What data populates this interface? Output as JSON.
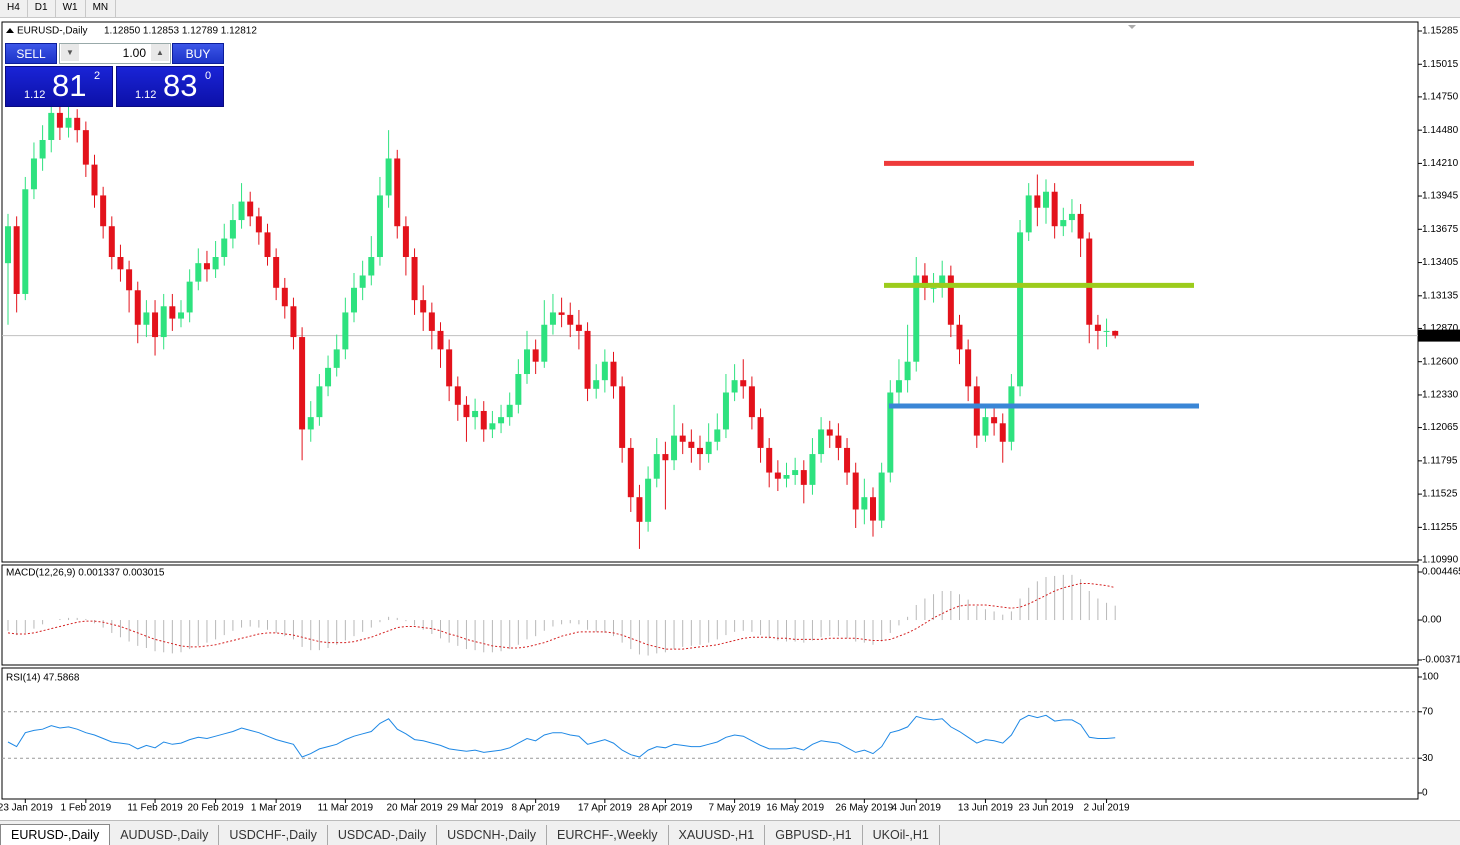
{
  "toolbar": {
    "timeframes": [
      "H4",
      "D1",
      "W1",
      "MN"
    ]
  },
  "trade_panel": {
    "sell": "SELL",
    "lot": "1.00",
    "buy": "BUY",
    "sell_price": {
      "big": "1.12",
      "pips": "81",
      "frac": "2"
    },
    "buy_price": {
      "big": "1.12",
      "pips": "83",
      "frac": "0"
    }
  },
  "chart_data": [
    {
      "type": "candlestick",
      "title": "EURUSD-,Daily",
      "ohlc_label": "1.12850 1.12853 1.12789 1.12812",
      "up_color": "#2ee27f",
      "down_color": "#e3121b",
      "categories": [
        null,
        null,
        "23 Jan 2019",
        null,
        null,
        null,
        null,
        null,
        null,
        "1 Feb 2019",
        null,
        null,
        null,
        null,
        null,
        null,
        null,
        "11 Feb 2019",
        null,
        null,
        null,
        null,
        null,
        null,
        "20 Feb 2019",
        null,
        null,
        null,
        null,
        null,
        null,
        "1 Mar 2019",
        null,
        null,
        null,
        null,
        null,
        null,
        null,
        "11 Mar 2019",
        null,
        null,
        null,
        null,
        null,
        null,
        null,
        "20 Mar 2019",
        null,
        null,
        null,
        null,
        null,
        null,
        "29 Mar 2019",
        null,
        null,
        null,
        null,
        null,
        null,
        "8 Apr 2019",
        null,
        null,
        null,
        null,
        null,
        null,
        null,
        "17 Apr 2019",
        null,
        null,
        null,
        null,
        null,
        null,
        "28 Apr 2019",
        null,
        null,
        null,
        null,
        null,
        null,
        null,
        "7 May 2019",
        null,
        null,
        null,
        null,
        null,
        null,
        "16 May 2019",
        null,
        null,
        null,
        null,
        null,
        null,
        null,
        "26 May 2019",
        null,
        null,
        null,
        null,
        null,
        "4 Jun 2019",
        null,
        null,
        null,
        null,
        null,
        null,
        null,
        "13 Jun 2019",
        null,
        null,
        null,
        null,
        null,
        null,
        "23 Jun 2019",
        null,
        null,
        null,
        null,
        null,
        null,
        "2 Jul 2019",
        null
      ],
      "open": [
        1.134,
        1.137,
        1.1315,
        1.14,
        1.1425,
        1.144,
        1.1462,
        1.145,
        1.1458,
        1.1448,
        1.142,
        1.1395,
        1.137,
        1.1345,
        1.1335,
        1.1318,
        1.129,
        1.13,
        1.128,
        1.1305,
        1.1295,
        1.13,
        1.1325,
        1.134,
        1.1335,
        1.1345,
        1.136,
        1.1375,
        1.139,
        1.1378,
        1.1365,
        1.1345,
        1.132,
        1.1305,
        1.128,
        1.1205,
        1.1215,
        1.124,
        1.1255,
        1.127,
        1.13,
        1.132,
        1.133,
        1.1345,
        1.1395,
        1.1425,
        1.137,
        1.1345,
        1.131,
        1.13,
        1.1285,
        1.127,
        1.124,
        1.1225,
        1.1215,
        1.122,
        1.1205,
        1.121,
        1.1215,
        1.1225,
        1.125,
        1.127,
        1.126,
        1.129,
        1.13,
        1.1298,
        1.129,
        1.1285,
        1.1238,
        1.1245,
        1.126,
        1.124,
        1.119,
        1.115,
        1.113,
        1.1165,
        1.1185,
        1.118,
        1.12,
        1.1195,
        1.119,
        1.1185,
        1.1195,
        1.1205,
        1.1235,
        1.1245,
        1.124,
        1.1215,
        1.119,
        1.117,
        1.1165,
        1.1168,
        1.1172,
        1.116,
        1.1185,
        1.1205,
        1.12,
        1.119,
        1.117,
        1.114,
        1.115,
        1.1131,
        1.117,
        1.1235,
        1.1245,
        1.126,
        1.133,
        1.132,
        1.132,
        1.133,
        1.129,
        1.127,
        1.124,
        1.12,
        1.1215,
        1.121,
        1.1195,
        1.124,
        1.1365,
        1.1395,
        1.1385,
        1.1398,
        1.137,
        1.1375,
        1.138,
        1.136,
        1.129,
        1.1285,
        1.1285
      ],
      "high": [
        1.138,
        1.1378,
        1.141,
        1.1438,
        1.1452,
        1.1478,
        1.147,
        1.1468,
        1.1465,
        1.1455,
        1.1428,
        1.1402,
        1.1378,
        1.1355,
        1.1342,
        1.1325,
        1.131,
        1.131,
        1.1315,
        1.1315,
        1.131,
        1.1335,
        1.1352,
        1.135,
        1.1358,
        1.1372,
        1.1388,
        1.1405,
        1.1398,
        1.1385,
        1.1372,
        1.1352,
        1.1328,
        1.1312,
        1.1288,
        1.1228,
        1.125,
        1.1265,
        1.1282,
        1.1312,
        1.1332,
        1.1342,
        1.1362,
        1.141,
        1.1448,
        1.1432,
        1.1378,
        1.1352,
        1.1322,
        1.1308,
        1.1292,
        1.1278,
        1.1248,
        1.1232,
        1.123,
        1.1228,
        1.122,
        1.1225,
        1.1235,
        1.1262,
        1.1285,
        1.1278,
        1.131,
        1.1315,
        1.1312,
        1.1308,
        1.1302,
        1.1292,
        1.1258,
        1.127,
        1.1268,
        1.1248,
        1.1198,
        1.116,
        1.1175,
        1.1198,
        1.1195,
        1.1225,
        1.121,
        1.1205,
        1.12,
        1.121,
        1.1218,
        1.125,
        1.1258,
        1.1262,
        1.1248,
        1.1222,
        1.1198,
        1.118,
        1.1178,
        1.1182,
        1.118,
        1.1198,
        1.1215,
        1.1212,
        1.121,
        1.1198,
        1.1178,
        1.1165,
        1.1158,
        1.1178,
        1.1245,
        1.1262,
        1.129,
        1.1345,
        1.134,
        1.1332,
        1.1342,
        1.1338,
        1.1298,
        1.1278,
        1.1248,
        1.1225,
        1.1222,
        1.1218,
        1.125,
        1.1375,
        1.1405,
        1.1412,
        1.1408,
        1.1405,
        1.1385,
        1.1392,
        1.1388,
        1.1365,
        1.1298,
        1.1295,
        1.12853
      ],
      "low": [
        1.129,
        1.13,
        1.131,
        1.1392,
        1.1415,
        1.143,
        1.144,
        1.1442,
        1.1438,
        1.141,
        1.1385,
        1.136,
        1.1335,
        1.1325,
        1.13,
        1.1275,
        1.128,
        1.1265,
        1.127,
        1.1285,
        1.1288,
        1.1292,
        1.1318,
        1.1325,
        1.1328,
        1.1338,
        1.1352,
        1.1368,
        1.137,
        1.1355,
        1.1338,
        1.131,
        1.1295,
        1.127,
        1.118,
        1.1195,
        1.1208,
        1.1232,
        1.1248,
        1.1262,
        1.1292,
        1.131,
        1.1322,
        1.1338,
        1.1385,
        1.136,
        1.133,
        1.1298,
        1.1285,
        1.127,
        1.1255,
        1.1228,
        1.1212,
        1.1195,
        1.1205,
        1.1195,
        1.1198,
        1.1202,
        1.1208,
        1.1218,
        1.1242,
        1.125,
        1.1255,
        1.1282,
        1.1288,
        1.128,
        1.127,
        1.1228,
        1.123,
        1.1235,
        1.123,
        1.1178,
        1.1138,
        1.1108,
        1.1122,
        1.1158,
        1.114,
        1.1172,
        1.1185,
        1.1178,
        1.1172,
        1.1178,
        1.1188,
        1.1198,
        1.1228,
        1.123,
        1.1205,
        1.1178,
        1.1158,
        1.1155,
        1.1158,
        1.116,
        1.1145,
        1.1152,
        1.1178,
        1.119,
        1.118,
        1.116,
        1.1125,
        1.1128,
        1.1118,
        1.1125,
        1.1162,
        1.1225,
        1.1235,
        1.1252,
        1.131,
        1.1308,
        1.1312,
        1.128,
        1.1258,
        1.1228,
        1.119,
        1.1195,
        1.12,
        1.1178,
        1.1188,
        1.1232,
        1.1358,
        1.137,
        1.1372,
        1.136,
        1.1362,
        1.1365,
        1.1345,
        1.1275,
        1.127,
        1.1272,
        1.12789
      ],
      "close": [
        1.137,
        1.1315,
        1.14,
        1.1425,
        1.144,
        1.1462,
        1.145,
        1.1458,
        1.1448,
        1.142,
        1.1395,
        1.137,
        1.1345,
        1.1335,
        1.1318,
        1.129,
        1.13,
        1.128,
        1.1305,
        1.1295,
        1.13,
        1.1325,
        1.134,
        1.1335,
        1.1345,
        1.136,
        1.1375,
        1.139,
        1.1378,
        1.1365,
        1.1345,
        1.132,
        1.1305,
        1.128,
        1.1205,
        1.1215,
        1.124,
        1.1255,
        1.127,
        1.13,
        1.132,
        1.133,
        1.1345,
        1.1395,
        1.1425,
        1.137,
        1.1345,
        1.131,
        1.13,
        1.1285,
        1.127,
        1.124,
        1.1225,
        1.1215,
        1.122,
        1.1205,
        1.121,
        1.1215,
        1.1225,
        1.125,
        1.127,
        1.126,
        1.129,
        1.13,
        1.1298,
        1.129,
        1.1285,
        1.1238,
        1.1245,
        1.126,
        1.124,
        1.119,
        1.115,
        1.113,
        1.1165,
        1.1185,
        1.118,
        1.12,
        1.1195,
        1.119,
        1.1185,
        1.1195,
        1.1205,
        1.1235,
        1.1245,
        1.124,
        1.1215,
        1.119,
        1.117,
        1.1165,
        1.1168,
        1.1172,
        1.116,
        1.1185,
        1.1205,
        1.12,
        1.119,
        1.117,
        1.114,
        1.115,
        1.1131,
        1.117,
        1.1235,
        1.1245,
        1.126,
        1.133,
        1.132,
        1.132,
        1.133,
        1.129,
        1.127,
        1.124,
        1.12,
        1.1215,
        1.121,
        1.1195,
        1.124,
        1.1365,
        1.1395,
        1.1385,
        1.1398,
        1.137,
        1.1375,
        1.138,
        1.136,
        1.129,
        1.1285,
        1.1285,
        1.12812
      ],
      "ylim": [
        1.1099,
        1.15285
      ],
      "yticks": [
        1.15285,
        1.15015,
        {
          "value": 1.1475,
          "label": "1.14750"
        },
        {
          "value": 1.1448,
          "label": "1.14480"
        },
        {
          "value": 1.1421,
          "label": "1.14210"
        },
        1.13945,
        1.13675,
        1.13405,
        1.13135,
        {
          "value": 1.1287,
          "label": "1.12870"
        },
        {
          "value": 1.126,
          "label": "1.12600"
        },
        {
          "value": 1.1233,
          "label": "1.12330"
        },
        1.12065,
        1.11795,
        1.11525,
        1.11255,
        {
          "value": 1.1099,
          "label": "1.10990"
        }
      ],
      "current_price": 1.12812,
      "levels": [
        {
          "value": 1.1421,
          "color": "#ee3a3a"
        },
        {
          "value": 1.1322,
          "color": "#9ccc1c"
        },
        {
          "value": 1.1224,
          "color": "#3a86d6"
        }
      ]
    },
    {
      "type": "macd",
      "title": "MACD(12,26,9) 0.001337 0.003015",
      "color": "#b8b8b8",
      "signal_color": "#d42020",
      "histogram": [
        -0.001,
        -0.0014,
        -0.0012,
        -0.0008,
        -0.0004,
        0.0,
        0.0001,
        0.0002,
        0.0002,
        0.0001,
        -0.0003,
        -0.0007,
        -0.0012,
        -0.0016,
        -0.002,
        -0.0024,
        -0.0026,
        -0.0029,
        -0.003,
        -0.0031,
        -0.003,
        -0.0027,
        -0.0024,
        -0.0021,
        -0.0018,
        -0.0014,
        -0.001,
        -0.0007,
        -0.0006,
        -0.0007,
        -0.0009,
        -0.0012,
        -0.0015,
        -0.0018,
        -0.0025,
        -0.0028,
        -0.0028,
        -0.0026,
        -0.0023,
        -0.0019,
        -0.0015,
        -0.0011,
        -0.0007,
        -0.0002,
        0.0003,
        0.0002,
        -0.0001,
        -0.0005,
        -0.0009,
        -0.0013,
        -0.0017,
        -0.0021,
        -0.0024,
        -0.0027,
        -0.0028,
        -0.003,
        -0.003,
        -0.0029,
        -0.0027,
        -0.0023,
        -0.0018,
        -0.0015,
        -0.001,
        -0.0006,
        -0.0004,
        -0.0003,
        -0.0004,
        -0.0009,
        -0.0011,
        -0.0012,
        -0.0015,
        -0.0021,
        -0.0027,
        -0.0032,
        -0.0033,
        -0.0031,
        -0.003,
        -0.0027,
        -0.0025,
        -0.0024,
        -0.0023,
        -0.0021,
        -0.0018,
        -0.0014,
        -0.0011,
        -0.001,
        -0.0011,
        -0.0014,
        -0.0017,
        -0.0019,
        -0.002,
        -0.002,
        -0.0021,
        -0.0019,
        -0.0016,
        -0.0015,
        -0.0015,
        -0.0017,
        -0.002,
        -0.0021,
        -0.0023,
        -0.002,
        -0.0012,
        -0.0005,
        0.0003,
        0.0014,
        0.002,
        0.0024,
        0.0027,
        0.0027,
        0.0024,
        0.0019,
        0.0013,
        0.001,
        0.0008,
        0.0005,
        0.0008,
        0.002,
        0.003,
        0.0036,
        0.004,
        0.0041,
        0.0042,
        0.0042,
        0.0038,
        0.0027,
        0.002,
        0.0016,
        0.001337
      ],
      "signal": [
        -0.0012,
        -0.0013,
        -0.0013,
        -0.0012,
        -0.001,
        -0.0008,
        -0.0006,
        -0.0004,
        -0.0002,
        -0.0001,
        -0.0001,
        -0.0002,
        -0.0004,
        -0.0006,
        -0.0009,
        -0.0012,
        -0.0015,
        -0.0018,
        -0.002,
        -0.0022,
        -0.0024,
        -0.0025,
        -0.0025,
        -0.0024,
        -0.0023,
        -0.0021,
        -0.0019,
        -0.0017,
        -0.0015,
        -0.0013,
        -0.0012,
        -0.0012,
        -0.0013,
        -0.0014,
        -0.0016,
        -0.0018,
        -0.002,
        -0.0021,
        -0.0021,
        -0.0021,
        -0.002,
        -0.0018,
        -0.0016,
        -0.0013,
        -0.001,
        -0.0007,
        -0.0006,
        -0.0006,
        -0.0007,
        -0.0008,
        -0.001,
        -0.0013,
        -0.0015,
        -0.0018,
        -0.002,
        -0.0022,
        -0.0024,
        -0.0025,
        -0.0026,
        -0.0026,
        -0.0025,
        -0.0023,
        -0.0021,
        -0.0018,
        -0.0015,
        -0.0013,
        -0.0011,
        -0.0011,
        -0.0011,
        -0.0011,
        -0.0012,
        -0.0014,
        -0.0017,
        -0.002,
        -0.0023,
        -0.0025,
        -0.0027,
        -0.0027,
        -0.0027,
        -0.0026,
        -0.0025,
        -0.0024,
        -0.0023,
        -0.0021,
        -0.0019,
        -0.0017,
        -0.0016,
        -0.0016,
        -0.0016,
        -0.0017,
        -0.0017,
        -0.0018,
        -0.0018,
        -0.0018,
        -0.0018,
        -0.0017,
        -0.0017,
        -0.0017,
        -0.0017,
        -0.0018,
        -0.0019,
        -0.0019,
        -0.0018,
        -0.0015,
        -0.0012,
        -0.0008,
        -0.0003,
        0.0002,
        0.0006,
        0.001,
        0.0013,
        0.0014,
        0.0014,
        0.0014,
        0.0013,
        0.0012,
        0.0011,
        0.0012,
        0.0015,
        0.0019,
        0.0023,
        0.0027,
        0.003,
        0.0032,
        0.0034,
        0.0034,
        0.0033,
        0.0032,
        0.003015
      ],
      "ylim": [
        -0.003715,
        0.004465
      ],
      "yticks": [
        0.004465,
        {
          "value": 0,
          "label": "0.00"
        },
        -0.003715
      ]
    },
    {
      "type": "line",
      "title": "RSI(14) 47.5868",
      "color": "#1e88e5",
      "values": [
        44,
        40,
        52,
        54,
        55,
        58,
        56,
        57,
        55,
        52,
        50,
        47,
        44,
        43,
        42,
        38,
        41,
        39,
        44,
        42,
        43,
        46,
        48,
        47,
        49,
        51,
        53,
        56,
        54,
        52,
        49,
        46,
        44,
        42,
        31,
        34,
        38,
        40,
        42,
        46,
        49,
        51,
        53,
        60,
        64,
        55,
        51,
        46,
        45,
        43,
        41,
        38,
        37,
        36,
        37,
        35,
        36,
        37,
        39,
        43,
        47,
        45,
        50,
        52,
        52,
        50,
        49,
        42,
        44,
        46,
        43,
        37,
        33,
        31,
        37,
        40,
        39,
        42,
        41,
        40,
        40,
        42,
        44,
        48,
        50,
        49,
        45,
        41,
        38,
        38,
        38,
        39,
        37,
        42,
        45,
        44,
        43,
        39,
        35,
        37,
        34,
        40,
        52,
        54,
        57,
        66,
        64,
        63,
        64,
        57,
        53,
        48,
        43,
        46,
        45,
        43,
        50,
        63,
        67,
        65,
        67,
        62,
        63,
        63,
        59,
        48,
        47,
        47,
        47.5868
      ],
      "ylim": [
        0,
        100
      ],
      "yticks": [
        100,
        70,
        30,
        0
      ],
      "levels": [
        70,
        30
      ]
    }
  ],
  "tabs": [
    "EURUSD-,Daily",
    "AUDUSD-,Daily",
    "USDCHF-,Daily",
    "USDCAD-,Daily",
    "USDCNH-,Daily",
    "EURCHF-,Weekly",
    "XAUUSD-,H1",
    "GBPUSD-,H1",
    "UKOil-,H1"
  ]
}
